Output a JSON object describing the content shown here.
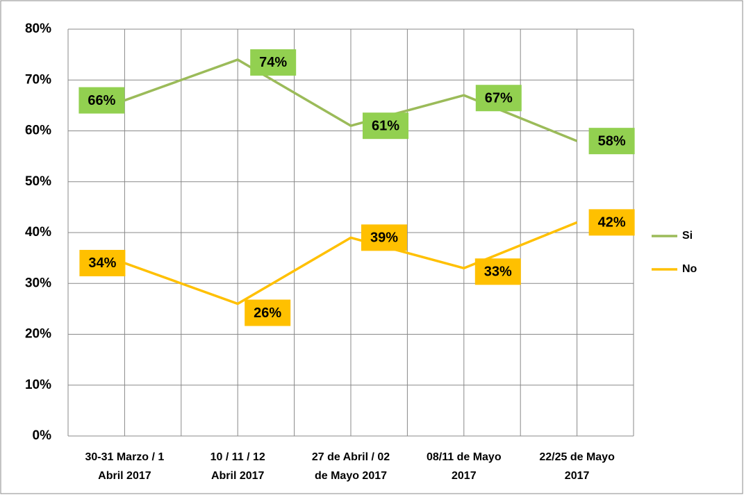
{
  "chart_data": {
    "type": "line",
    "categories": [
      [
        "30-31 Marzo / 1",
        "Abril 2017"
      ],
      [
        "10 / 11 / 12",
        "Abril 2017"
      ],
      [
        "27 de Abril / 02",
        "de Mayo 2017"
      ],
      [
        "08/11 de Mayo",
        "2017"
      ],
      [
        "22/25  de Mayo",
        "2017"
      ]
    ],
    "series": [
      {
        "name": "Si",
        "color": "#9bbb59",
        "label_color": "#92d050",
        "values": [
          66,
          74,
          61,
          67,
          58
        ],
        "value_labels": [
          "66%",
          "74%",
          "61%",
          "67%",
          "58%"
        ]
      },
      {
        "name": "No",
        "color": "#ffc000",
        "label_color": "#ffc000",
        "values": [
          34,
          26,
          39,
          33,
          42
        ],
        "value_labels": [
          "34%",
          "26%",
          "39%",
          "33%",
          "42%"
        ]
      }
    ],
    "ylim": [
      0,
      80
    ],
    "yticks": [
      {
        "value": 0,
        "label": "0%"
      },
      {
        "value": 10,
        "label": "10%"
      },
      {
        "value": 20,
        "label": "20%"
      },
      {
        "value": 30,
        "label": "30%"
      },
      {
        "value": 40,
        "label": "40%"
      },
      {
        "value": 50,
        "label": "50%"
      },
      {
        "value": 60,
        "label": "60%"
      },
      {
        "value": 70,
        "label": "70%"
      },
      {
        "value": 80,
        "label": "80%"
      }
    ],
    "grid": true,
    "legend": "right"
  }
}
